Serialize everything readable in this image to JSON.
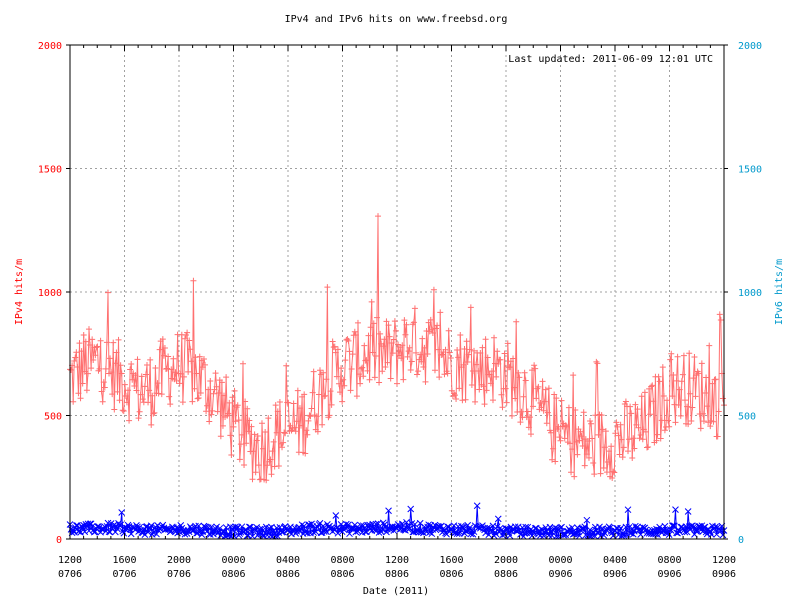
{
  "chart_data": {
    "type": "line",
    "title": "IPv4 and IPv6 hits on www.freebsd.org",
    "annotation": "Last updated: 2011-06-09 12:01 UTC",
    "xlabel": "Date (2011)",
    "ylabel": "IPv4 hits/m",
    "ylabel_right": "IPv6 hits/m",
    "ylim": [
      0,
      2000
    ],
    "ylim_right": [
      0,
      2000
    ],
    "yticks": [
      "0",
      "500",
      "1000",
      "1500",
      "2000"
    ],
    "yticks_right": [
      "0",
      "500",
      "1000",
      "1500",
      "2000"
    ],
    "xlim": [
      "2011-06-07 12:00",
      "2011-06-09 12:00"
    ],
    "xtick_labels": [
      {
        "hour": "1200",
        "day": "0706"
      },
      {
        "hour": "1600",
        "day": "0706"
      },
      {
        "hour": "2000",
        "day": "0706"
      },
      {
        "hour": "0000",
        "day": "0806"
      },
      {
        "hour": "0400",
        "day": "0806"
      },
      {
        "hour": "0800",
        "day": "0806"
      },
      {
        "hour": "1200",
        "day": "0806"
      },
      {
        "hour": "1600",
        "day": "0806"
      },
      {
        "hour": "2000",
        "day": "0806"
      },
      {
        "hour": "0000",
        "day": "0906"
      },
      {
        "hour": "0400",
        "day": "0906"
      },
      {
        "hour": "0800",
        "day": "0906"
      },
      {
        "hour": "1200",
        "day": "0906"
      }
    ],
    "grid": true,
    "series": [
      {
        "name": "IPv4 hits/m",
        "color": "#ff7070",
        "marker": "plus",
        "axis": "left",
        "x": [
          "06-07 12:00",
          "06-07 13:00",
          "06-07 14:00",
          "06-07 15:00",
          "06-07 16:00",
          "06-07 17:00",
          "06-07 18:00",
          "06-07 19:00",
          "06-07 20:00",
          "06-07 21:00",
          "06-07 22:00",
          "06-07 23:00",
          "06-08 00:00",
          "06-08 01:00",
          "06-08 02:00",
          "06-08 03:00",
          "06-08 04:00",
          "06-08 05:00",
          "06-08 06:00",
          "06-08 07:00",
          "06-08 08:00",
          "06-08 09:00",
          "06-08 10:00",
          "06-08 11:00",
          "06-08 12:00",
          "06-08 13:00",
          "06-08 14:00",
          "06-08 15:00",
          "06-08 16:00",
          "06-08 17:00",
          "06-08 18:00",
          "06-08 19:00",
          "06-08 20:00",
          "06-08 21:00",
          "06-08 22:00",
          "06-08 23:00",
          "06-09 00:00",
          "06-09 01:00",
          "06-09 02:00",
          "06-09 03:00",
          "06-09 04:00",
          "06-09 05:00",
          "06-09 06:00",
          "06-09 07:00",
          "06-09 08:00",
          "06-09 09:00",
          "06-09 10:00",
          "06-09 11:00",
          "06-09 12:00"
        ],
        "values": [
          640,
          700,
          720,
          680,
          640,
          600,
          610,
          680,
          700,
          680,
          620,
          560,
          460,
          400,
          360,
          420,
          440,
          470,
          560,
          640,
          700,
          720,
          760,
          740,
          760,
          800,
          780,
          760,
          720,
          700,
          680,
          700,
          660,
          620,
          560,
          480,
          420,
          400,
          380,
          380,
          400,
          420,
          440,
          520,
          600,
          620,
          600,
          560,
          560
        ]
      },
      {
        "name": "IPv6 hits/m",
        "color": "#0000ff",
        "marker": "cross",
        "axis": "right",
        "x": [
          "06-07 12:00",
          "06-07 15:00",
          "06-07 18:00",
          "06-07 21:00",
          "06-08 00:00",
          "06-08 03:00",
          "06-08 06:00",
          "06-08 09:00",
          "06-08 12:00",
          "06-08 15:00",
          "06-08 18:00",
          "06-08 21:00",
          "06-09 00:00",
          "06-09 03:00",
          "06-09 06:00",
          "06-09 09:00",
          "06-09 12:00"
        ],
        "values": [
          40,
          45,
          35,
          40,
          30,
          30,
          45,
          40,
          50,
          40,
          35,
          30,
          30,
          30,
          35,
          35,
          35
        ]
      }
    ]
  }
}
